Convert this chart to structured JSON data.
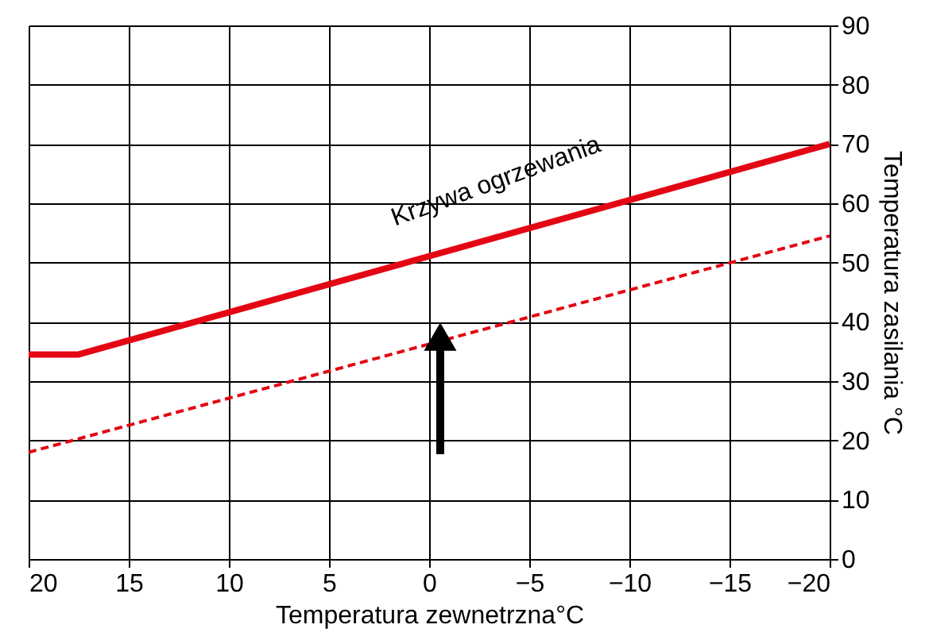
{
  "chart_data": {
    "type": "line",
    "xlabel": "Temperatura zewnetrzna°C",
    "ylabel": "Temperatura zasilania °C",
    "xlim": [
      20,
      -20
    ],
    "xticks": [
      20,
      15,
      10,
      5,
      0,
      -5,
      -10,
      -15,
      -20
    ],
    "ylim": [
      0,
      90
    ],
    "yticks": [
      0,
      10,
      20,
      30,
      40,
      50,
      60,
      70,
      80,
      90
    ],
    "grid": true,
    "marker": "none",
    "series": [
      {
        "color": "#e30613",
        "line_style": "solid",
        "x": [
          20,
          17.5,
          -20
        ],
        "values": [
          34.5,
          34.5,
          70
        ]
      },
      {
        "color": "#e30613",
        "line_style": "dashed",
        "x": [
          20,
          -20
        ],
        "values": [
          18,
          54.5
        ]
      }
    ],
    "annotations": [
      "Krzywa ogrzewania"
    ]
  }
}
